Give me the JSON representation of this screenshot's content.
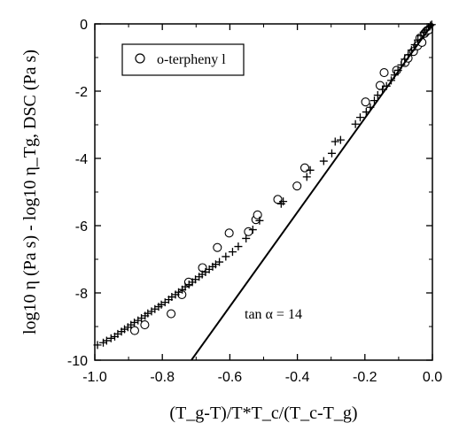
{
  "chart_data": {
    "type": "scatter",
    "xlabel": "(T_g-T)/T*T_c/(T_c-T_g)",
    "ylabel": "log10 η (Pa s) - log10 η_Tg, DSC (Pa s)",
    "xlim": [
      -1.0,
      0.0
    ],
    "ylim": [
      -10,
      0
    ],
    "x_ticks": [
      -1.0,
      -0.8,
      -0.6,
      -0.4,
      -0.2,
      0.0
    ],
    "x_tick_labels": [
      "-1.0",
      "-0.8",
      "-0.6",
      "-0.4",
      "-0.2",
      "0.0"
    ],
    "y_ticks": [
      -10,
      -8,
      -6,
      -4,
      -2,
      0
    ],
    "y_tick_labels": [
      "-10",
      "-8",
      "-6",
      "-4",
      "-2",
      "0"
    ],
    "grid": false,
    "legend_position": "top-left",
    "legend_label": "o-terpheny l",
    "annotation": "tan α = 14",
    "series": [
      {
        "name": "o-terpheny l",
        "marker": "circle",
        "x": [
          -0.882,
          -0.852,
          -0.774,
          -0.742,
          -0.722,
          -0.681,
          -0.637,
          -0.602,
          -0.545,
          -0.523,
          -0.518,
          -0.458,
          -0.401,
          -0.378,
          -0.198,
          -0.155,
          -0.143,
          -0.106,
          -0.081,
          -0.072,
          -0.056,
          -0.044,
          -0.037,
          -0.031,
          -0.023,
          -0.018,
          -0.011
        ],
        "y": [
          -9.12,
          -8.95,
          -8.62,
          -8.05,
          -7.68,
          -7.25,
          -6.65,
          -6.22,
          -6.18,
          -5.82,
          -5.68,
          -5.22,
          -4.82,
          -4.28,
          -2.32,
          -1.83,
          -1.45,
          -1.38,
          -1.15,
          -1.02,
          -0.82,
          -0.65,
          -0.42,
          -0.55,
          -0.28,
          -0.22,
          -0.18
        ]
      },
      {
        "name": "",
        "marker": "plus",
        "x": [
          -0.992,
          -0.975,
          -0.965,
          -0.952,
          -0.941,
          -0.932,
          -0.921,
          -0.912,
          -0.902,
          -0.893,
          -0.883,
          -0.872,
          -0.862,
          -0.851,
          -0.843,
          -0.832,
          -0.822,
          -0.811,
          -0.803,
          -0.792,
          -0.781,
          -0.772,
          -0.761,
          -0.752,
          -0.741,
          -0.732,
          -0.721,
          -0.711,
          -0.702,
          -0.691,
          -0.682,
          -0.672,
          -0.661,
          -0.651,
          -0.642,
          -0.631,
          -0.612,
          -0.592,
          -0.575,
          -0.552,
          -0.532,
          -0.512,
          -0.448,
          -0.442,
          -0.372,
          -0.362,
          -0.322,
          -0.298,
          -0.288,
          -0.272,
          -0.228,
          -0.214,
          -0.196,
          -0.184,
          -0.172,
          -0.162,
          -0.148,
          -0.136,
          -0.122,
          -0.112,
          -0.102,
          -0.092,
          -0.082,
          -0.072,
          -0.062,
          -0.052,
          -0.043,
          -0.034,
          -0.026,
          -0.018,
          -0.012,
          -0.006,
          -0.002
        ],
        "y": [
          -9.55,
          -9.48,
          -9.42,
          -9.35,
          -9.3,
          -9.22,
          -9.15,
          -9.08,
          -9.02,
          -8.95,
          -8.88,
          -8.82,
          -8.75,
          -8.68,
          -8.61,
          -8.55,
          -8.48,
          -8.41,
          -8.35,
          -8.28,
          -8.2,
          -8.12,
          -8.05,
          -7.98,
          -7.9,
          -7.82,
          -7.75,
          -7.68,
          -7.6,
          -7.52,
          -7.45,
          -7.38,
          -7.3,
          -7.22,
          -7.15,
          -7.08,
          -6.92,
          -6.78,
          -6.62,
          -6.38,
          -6.12,
          -5.85,
          -5.35,
          -5.28,
          -4.55,
          -4.35,
          -4.08,
          -3.85,
          -3.5,
          -3.45,
          -2.98,
          -2.78,
          -2.62,
          -2.48,
          -2.28,
          -2.12,
          -1.95,
          -1.85,
          -1.68,
          -1.52,
          -1.38,
          -1.22,
          -1.05,
          -0.92,
          -0.78,
          -0.62,
          -0.48,
          -0.35,
          -0.25,
          -0.18,
          -0.1,
          -0.05,
          -0.02
        ]
      },
      {
        "name": "",
        "type": "line",
        "x": [
          -0.714,
          0.0
        ],
        "y": [
          -10.0,
          0.0
        ]
      }
    ]
  }
}
